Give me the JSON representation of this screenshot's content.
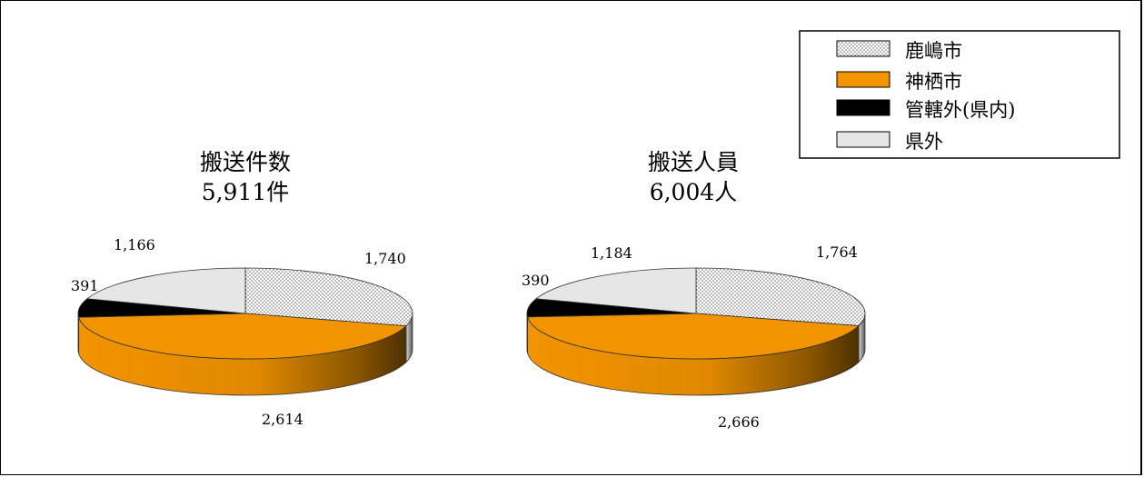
{
  "chart_data": [
    {
      "type": "pie",
      "title_lines": [
        "搬送件数",
        "5,911件"
      ],
      "categories": [
        "鹿嶋市",
        "神栖市",
        "管轄外(県内)",
        "県外"
      ],
      "values": [
        1740,
        2614,
        391,
        1166
      ],
      "value_labels": [
        "1,740",
        "2,614",
        "391",
        "1,166"
      ]
    },
    {
      "type": "pie",
      "title_lines": [
        "搬送人員",
        "6,004人"
      ],
      "categories": [
        "鹿嶋市",
        "神栖市",
        "管轄外(県内)",
        "県外"
      ],
      "values": [
        1764,
        2666,
        390,
        1184
      ],
      "value_labels": [
        "1,764",
        "2,666",
        "390",
        "1,184"
      ]
    }
  ],
  "legend": {
    "placement": "top-right",
    "entries": [
      {
        "label": "鹿嶋市",
        "fill": "dotted",
        "color": "#ffffff"
      },
      {
        "label": "神栖市",
        "fill": "solid",
        "color": "#f29400"
      },
      {
        "label": "管轄外(県内)",
        "fill": "solid",
        "color": "#000000"
      },
      {
        "label": "県外",
        "fill": "solid",
        "color": "#e6e6e6"
      }
    ]
  },
  "colors": {
    "kashima": "#ffffff",
    "kamisu": "#f29400",
    "outside_pref": "#000000",
    "outside": "#e6e6e6",
    "kamisu_dark": "#5e3a00"
  }
}
